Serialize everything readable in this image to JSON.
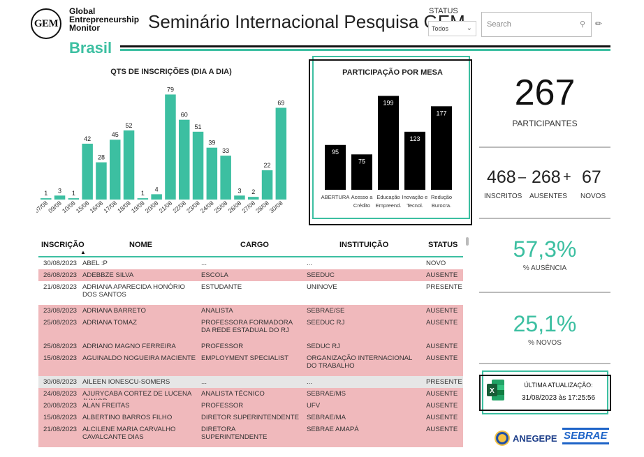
{
  "header": {
    "logo_mark": "GEM",
    "logo_line1": "Global",
    "logo_line2": "Entrepreneurship",
    "logo_line3": "Monitor",
    "logo_country": "Brasil",
    "title": "Seminário Internacional Pesquisa GEM"
  },
  "filters": {
    "status_label": "STATUS",
    "status_value": "Todos",
    "search_placeholder": "Search"
  },
  "chart_data": [
    {
      "type": "bar",
      "title": "QTS DE INSCRIÇÕES (DIA A DIA)",
      "categories": [
        "07/08",
        "09/08",
        "10/08",
        "15/08",
        "16/08",
        "17/08",
        "18/08",
        "19/08",
        "20/08",
        "21/08",
        "22/08",
        "23/08",
        "24/08",
        "25/08",
        "26/08",
        "27/08",
        "28/08",
        "30/08"
      ],
      "values": [
        1,
        3,
        1,
        42,
        28,
        45,
        52,
        1,
        4,
        79,
        60,
        51,
        39,
        33,
        3,
        2,
        22,
        69
      ],
      "color": "#3cbfa1",
      "ylim": [
        0,
        85
      ]
    },
    {
      "type": "bar",
      "title": "PARTICIPAÇÃO POR MESA",
      "categories": [
        [
          "ABERTURA"
        ],
        [
          "Acesso a",
          "Crédito"
        ],
        [
          "Educação",
          "Empreend."
        ],
        [
          "Inovação e",
          "Tecnol."
        ],
        [
          "Redução",
          "Burocra."
        ]
      ],
      "values": [
        95,
        75,
        199,
        123,
        177
      ],
      "color": "#000000",
      "ylim": [
        0,
        210
      ]
    }
  ],
  "kpis": {
    "participantes_value": "267",
    "participantes_label": "PARTICIPANTES",
    "inscritos_value": "468",
    "minus_sign": "–",
    "ausentes_value": "268",
    "plus_sign": "+",
    "novos_value": "67",
    "inscritos_label": "INSCRITOS",
    "ausentes_label": "AUSENTES",
    "novos_label": "NOVOS",
    "ausencia_pct": "57,3%",
    "ausencia_label": "% AUSÊNCIA",
    "novos_pct": "25,1%",
    "novos_pct_label": "% NOVOS"
  },
  "update": {
    "label": "ÚLTIMA ATUALIZAÇÃO:",
    "value": "31/08/2023 às 17:25:56"
  },
  "sponsors": {
    "anegepe": "ANEGEPE",
    "sebrae": "SEBRAE"
  },
  "table": {
    "columns": [
      "INSCRIÇÃO",
      "NOME",
      "CARGO",
      "INSTITUIÇÃO",
      "STATUS"
    ],
    "rows": [
      {
        "date": "30/08/2023",
        "nome": "ABEL :P",
        "cargo": "...",
        "inst": "...",
        "status": "NOVO",
        "style": "r-novo"
      },
      {
        "date": "26/08/2023",
        "nome": "ADEBBZE SILVA",
        "cargo": "ESCOLA",
        "inst": "SEEDUC",
        "status": "AUSENTE",
        "style": "r-ausente"
      },
      {
        "date": "21/08/2023",
        "nome": "ADRIANA APARECIDA HONÓRIO DOS SANTOS",
        "cargo": "ESTUDANTE",
        "inst": "UNINOVE",
        "status": "PRESENTE",
        "style": "r-presente"
      },
      {
        "date": "23/08/2023",
        "nome": "ADRIANA BARRETO",
        "cargo": "ANALISTA",
        "inst": "SEBRAE/SE",
        "status": "AUSENTE",
        "style": "r-ausente"
      },
      {
        "date": "25/08/2023",
        "nome": "ADRIANA TOMAZ",
        "cargo": "PROFESSORA FORMADORA DA REDE ESTADUAL DO RJ",
        "inst": "SEEDUC RJ",
        "status": "AUSENTE",
        "style": "r-ausente"
      },
      {
        "date": "25/08/2023",
        "nome": "ADRIANO MAGNO FERREIRA",
        "cargo": "PROFESSOR",
        "inst": "SEDUC RJ",
        "status": "AUSENTE",
        "style": "r-ausente"
      },
      {
        "date": "15/08/2023",
        "nome": "AGUINALDO NOGUEIRA MACIENTE",
        "cargo": "EMPLOYMENT SPECIALIST",
        "inst": "ORGANIZAÇÃO INTERNACIONAL DO TRABALHO",
        "status": "AUSENTE",
        "style": "r-ausente"
      },
      {
        "date": "30/08/2023",
        "nome": "AILEEN IONESCU-SOMERS",
        "cargo": "...",
        "inst": "...",
        "status": "PRESENTE",
        "style": "r-grey"
      },
      {
        "date": "24/08/2023",
        "nome": "AJURYCABA CORTEZ DE LUCENA JUNIOR",
        "cargo": "ANALISTA TÉCNICO",
        "inst": "SEBRAE/MS",
        "status": "AUSENTE",
        "style": "r-ausente"
      },
      {
        "date": "20/08/2023",
        "nome": "ALAN FREITAS",
        "cargo": "PROFESSOR",
        "inst": "UFV",
        "status": "AUSENTE",
        "style": "r-ausente"
      },
      {
        "date": "15/08/2023",
        "nome": "ALBERTINO BARROS FILHO",
        "cargo": "DIRETOR SUPERINTENDENTE",
        "inst": "SEBRAE/MA",
        "status": "AUSENTE",
        "style": "r-ausente"
      },
      {
        "date": "21/08/2023",
        "nome": "ALCILENE MARIA CARVALHO CAVALCANTE DIAS",
        "cargo": "DIRETORA SUPERINTENDENTE",
        "inst": "SEBRAE AMAPÁ",
        "status": "AUSENTE",
        "style": "r-ausente"
      }
    ]
  }
}
